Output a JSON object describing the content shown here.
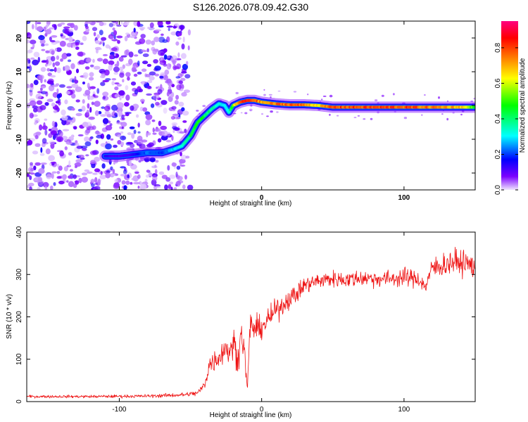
{
  "title": "S126.2026.078.09.42.G30",
  "chart_data": [
    {
      "type": "heatmap",
      "name": "spectrogram",
      "xlabel": "Height of straight line (km)",
      "ylabel": "Frequency (Hz)",
      "xlim": [
        -165,
        150
      ],
      "ylim": [
        -25,
        25
      ],
      "xticks": [
        -100,
        0,
        100
      ],
      "yticks": [
        -20,
        -10,
        0,
        10,
        20
      ],
      "colorbar": {
        "label": "Normalized spectral amplitude",
        "range": [
          0,
          0.95
        ],
        "ticks": [
          0.0,
          0.2,
          0.4,
          0.6,
          0.8
        ],
        "tick_labels": [
          "0.0",
          "0.2",
          "0.4",
          "0.6",
          "0.8"
        ],
        "colormap": [
          "#f0e6ff",
          "#7b00ff",
          "#0000ff",
          "#00ffff",
          "#00ff00",
          "#ffff00",
          "#ff8000",
          "#ff0000",
          "#ff0080"
        ]
      },
      "noise_region_x": [
        -165,
        -52
      ],
      "trace": {
        "x": [
          -110,
          -100,
          -90,
          -80,
          -70,
          -62,
          -56,
          -50,
          -45,
          -40,
          -35,
          -30,
          -26,
          -23,
          -20,
          -15,
          -10,
          -5,
          0,
          10,
          20,
          30,
          40,
          50,
          60,
          80,
          100,
          120,
          140,
          150
        ],
        "y": [
          -15,
          -15,
          -14.5,
          -14,
          -14,
          -13,
          -12,
          -9,
          -5,
          -3,
          -1,
          0.5,
          0,
          -2,
          0,
          1,
          1.5,
          1.5,
          1,
          0.5,
          0.2,
          0.2,
          0,
          -0.5,
          -0.5,
          -0.5,
          -0.5,
          -0.5,
          -0.5,
          -0.5
        ],
        "amplitude": [
          0.15,
          0.12,
          0.15,
          0.25,
          0.2,
          0.3,
          0.35,
          0.45,
          0.5,
          0.45,
          0.4,
          0.35,
          0.3,
          0.35,
          0.6,
          0.85,
          0.9,
          0.85,
          0.75,
          0.8,
          0.85,
          0.8,
          0.7,
          0.85,
          0.85,
          0.85,
          0.85,
          0.8,
          0.75,
          0.5
        ]
      }
    },
    {
      "type": "line",
      "name": "snr",
      "xlabel": "Height of straight line (km)",
      "ylabel": "SNR (10 * v/v)",
      "xlim": [
        -165,
        150
      ],
      "ylim": [
        0,
        400
      ],
      "xticks": [
        -100,
        0,
        100
      ],
      "yticks": [
        0,
        100,
        200,
        300,
        400
      ],
      "color": "#ee1111",
      "series": [
        {
          "name": "SNR",
          "x": [
            -165,
            -120,
            -80,
            -55,
            -45,
            -40,
            -37,
            -34,
            -30,
            -25,
            -22,
            -20,
            -17,
            -14,
            -12,
            -10,
            -8,
            -5,
            0,
            5,
            10,
            15,
            20,
            25,
            30,
            40,
            50,
            60,
            70,
            80,
            90,
            100,
            110,
            115,
            118,
            120,
            125,
            130,
            135,
            140,
            145,
            150
          ],
          "y": [
            12,
            12,
            13,
            16,
            20,
            40,
            85,
            95,
            105,
            130,
            110,
            145,
            100,
            165,
            110,
            30,
            185,
            170,
            175,
            195,
            215,
            230,
            245,
            255,
            275,
            285,
            290,
            288,
            292,
            290,
            290,
            293,
            290,
            270,
            300,
            315,
            320,
            325,
            330,
            328,
            325,
            318
          ],
          "noise": [
            5,
            5,
            6,
            8,
            10,
            18,
            40,
            40,
            40,
            50,
            40,
            60,
            50,
            60,
            45,
            20,
            55,
            45,
            40,
            40,
            40,
            40,
            35,
            35,
            30,
            30,
            30,
            30,
            30,
            30,
            30,
            35,
            30,
            30,
            30,
            40,
            45,
            45,
            45,
            45,
            45,
            45
          ]
        }
      ]
    }
  ]
}
